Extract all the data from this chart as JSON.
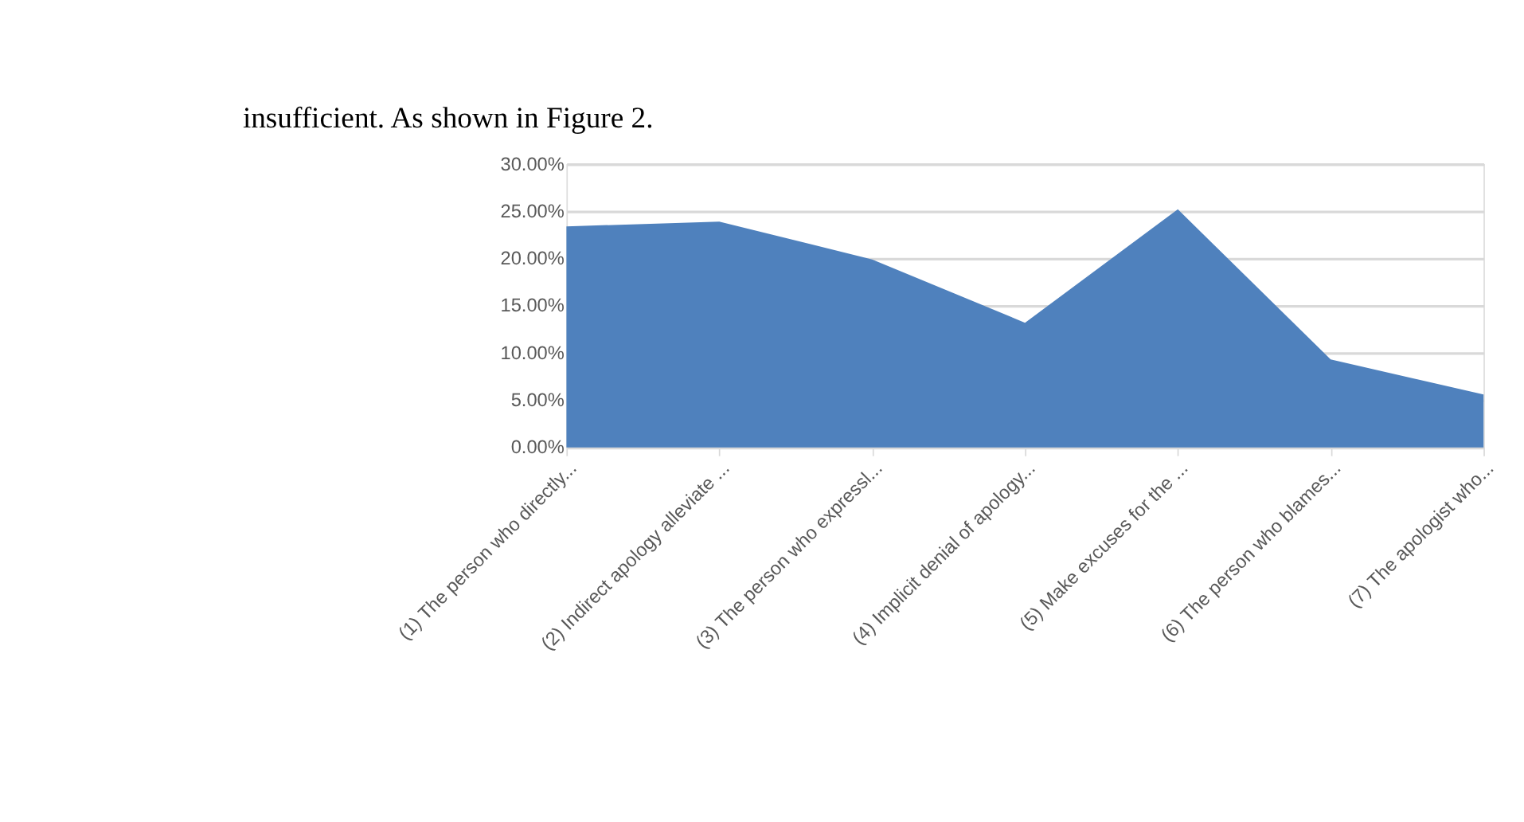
{
  "chart_data": {
    "type": "area",
    "categories": [
      "(1) The person who directly...",
      "(2) Indirect apology alleviate ...",
      "(3) The person who expressl...",
      "(4) Implicit denial of apology...",
      "(5) Make excuses for the ...",
      "(6) The person who blames...",
      "(7) The apologist who..."
    ],
    "series": [
      {
        "color": "#4f81bd",
        "values": [
          23.4,
          23.9,
          19.9,
          13.2,
          25.2,
          9.3,
          5.6
        ]
      }
    ],
    "ylim": [
      0,
      30
    ],
    "yticks": [
      {
        "value": 0,
        "label": "0.00%"
      },
      {
        "value": 5,
        "label": "5.00%"
      },
      {
        "value": 10,
        "label": "10.00%"
      },
      {
        "value": 15,
        "label": "15.00%"
      },
      {
        "value": 20,
        "label": "20.00%"
      },
      {
        "value": 25,
        "label": "25.00%"
      },
      {
        "value": 30,
        "label": "30.00%"
      }
    ],
    "grid": "y",
    "annotations": [
      "insufficient. As shown in Figure 2."
    ]
  }
}
